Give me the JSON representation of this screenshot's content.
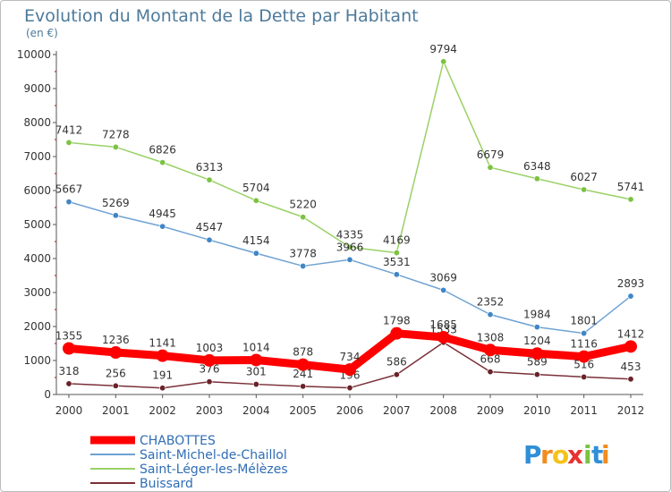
{
  "chart_data": {
    "type": "line",
    "title": "Evolution du Montant de la Dette par Habitant",
    "subtitle": "(en €)",
    "xlabel": "",
    "ylabel": "",
    "ylim": [
      0,
      10000
    ],
    "yticks": [
      0,
      1000,
      2000,
      3000,
      4000,
      5000,
      6000,
      7000,
      8000,
      9000,
      10000
    ],
    "x": [
      "2000",
      "2001",
      "2002",
      "2003",
      "2004",
      "2005",
      "2006",
      "2007",
      "2008",
      "2009",
      "2010",
      "2011",
      "2012"
    ],
    "grid": false,
    "legend_position": "bottom-left",
    "series": [
      {
        "name": "Saint-Léger-les-Mélèzes",
        "color": "#99d166",
        "marker_color": "#7cc242",
        "values": [
          7412,
          7278,
          6826,
          6313,
          5704,
          5220,
          4335,
          4169,
          9794,
          6679,
          6348,
          6027,
          5741
        ]
      },
      {
        "name": "Saint-Michel-de-Chaillol",
        "color": "#6ea2d3",
        "marker_color": "#3f86c6",
        "values": [
          5667,
          5269,
          4945,
          4547,
          4154,
          3778,
          3966,
          3531,
          3069,
          2352,
          1984,
          1801,
          2893
        ]
      },
      {
        "name": "Buissard",
        "color": "#7a3038",
        "marker_color": "#6b2228",
        "values": [
          318,
          256,
          191,
          376,
          301,
          241,
          196,
          586,
          1533,
          668,
          589,
          516,
          453
        ]
      },
      {
        "name": "CHABOTTES",
        "color": "#ff0000",
        "marker_color": "#ff0000",
        "values": [
          1355,
          1236,
          1141,
          1003,
          1014,
          878,
          734,
          1798,
          1685,
          1308,
          1204,
          1116,
          1412
        ]
      }
    ],
    "legend": [
      "CHABOTTES",
      "Saint-Michel-de-Chaillol",
      "Saint-Léger-les-Mélèzes",
      "Buissard"
    ]
  },
  "logo": {
    "letters": [
      "P",
      "r",
      "o",
      "x",
      "i",
      "t",
      "i"
    ],
    "colors": [
      "#2f8fd8",
      "#f28c1e",
      "#f4c21b",
      "#e8322f",
      "#7cc242",
      "#2f8fd8",
      "#f28c1e"
    ]
  }
}
